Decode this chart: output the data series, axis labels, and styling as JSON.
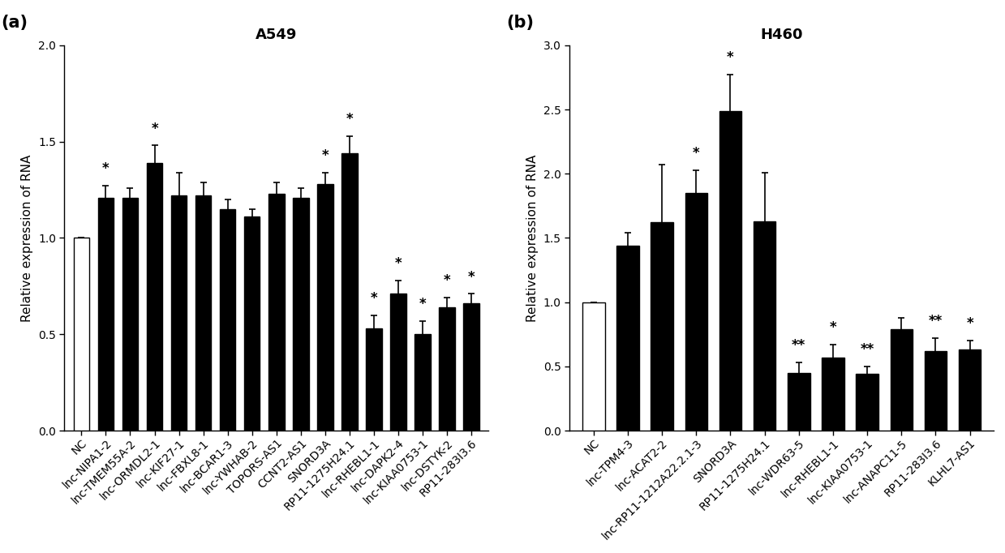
{
  "panel_a": {
    "title": "A549",
    "ylabel": "Relative expression of RNA",
    "ylim": [
      0,
      2.0
    ],
    "yticks": [
      0.0,
      0.5,
      1.0,
      1.5,
      2.0
    ],
    "categories": [
      "NC",
      "lnc-NIPA1-2",
      "lnc-TMEM55A-2",
      "lnc-ORMDL2-1",
      "lnc-KIF27-1",
      "lnc-FBXL8-1",
      "lnc-BCAR1-3",
      "lnc-YWHAB-2",
      "TOPORS-AS1",
      "CCNT2-AS1",
      "SNORD3A",
      "RP11-1275H24.1",
      "lnc-RHEBL1-1",
      "lnc-DAPK2-4",
      "lnc-KIAA0753-1",
      "lnc-DSTYK-2",
      "RP11-283I3.6"
    ],
    "values": [
      1.0,
      1.21,
      1.21,
      1.39,
      1.22,
      1.22,
      1.15,
      1.11,
      1.23,
      1.21,
      1.28,
      1.44,
      0.53,
      0.71,
      0.5,
      0.64,
      0.66
    ],
    "errors": [
      0.0,
      0.06,
      0.05,
      0.09,
      0.12,
      0.07,
      0.05,
      0.04,
      0.06,
      0.05,
      0.06,
      0.09,
      0.07,
      0.07,
      0.07,
      0.05,
      0.05
    ],
    "significance": [
      "",
      "*",
      "",
      "*",
      "",
      "",
      "",
      "",
      "",
      "",
      "*",
      "*",
      "*",
      "*",
      "*",
      "*",
      "*"
    ],
    "bar_colors": [
      "white",
      "black",
      "black",
      "black",
      "black",
      "black",
      "black",
      "black",
      "black",
      "black",
      "black",
      "black",
      "black",
      "black",
      "black",
      "black",
      "black"
    ],
    "panel_label": "(a)"
  },
  "panel_b": {
    "title": "H460",
    "ylabel": "Relative expression of RNA",
    "ylim": [
      0,
      3.0
    ],
    "yticks": [
      0.0,
      0.5,
      1.0,
      1.5,
      2.0,
      2.5,
      3.0
    ],
    "categories": [
      "NC",
      "lnc-TPM4-3",
      "lnc-ACAT2-2",
      "lnc-RP11-1212A22.2.1-3",
      "SNORD3A",
      "RP11-1275H24.1",
      "lnc-WDR63-5",
      "lnc-RHEBL1-1",
      "lnc-KIAA0753-1",
      "lnc-ANAPC11-5",
      "RP11-283I3.6",
      "KLHL7-AS1"
    ],
    "values": [
      1.0,
      1.44,
      1.62,
      1.85,
      2.49,
      1.63,
      0.45,
      0.57,
      0.44,
      0.79,
      0.62,
      0.63
    ],
    "errors": [
      0.0,
      0.1,
      0.45,
      0.18,
      0.28,
      0.38,
      0.08,
      0.1,
      0.06,
      0.09,
      0.1,
      0.07
    ],
    "significance": [
      "",
      "",
      "",
      "*",
      "*",
      "",
      "**",
      "*",
      "**",
      "",
      "**",
      "*"
    ],
    "bar_colors": [
      "white",
      "black",
      "black",
      "black",
      "black",
      "black",
      "black",
      "black",
      "black",
      "black",
      "black",
      "black"
    ],
    "panel_label": "(b)"
  },
  "background_color": "white",
  "bar_edge_color": "black",
  "error_color": "black",
  "tick_fontsize": 10,
  "label_fontsize": 11,
  "title_fontsize": 13,
  "panel_label_fontsize": 15,
  "sig_fontsize": 12
}
